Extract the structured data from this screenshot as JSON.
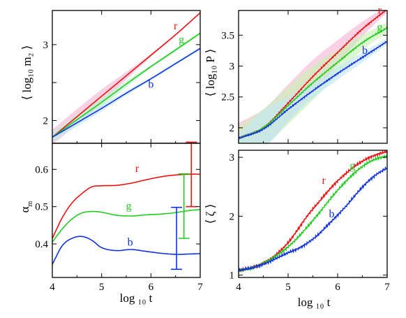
{
  "chart_data": [
    {
      "id": "tl",
      "type": "line",
      "ylabel": "⟨ log₁₀ m₂ ⟩",
      "xlim": [
        4,
        7
      ],
      "ylim": [
        1.7,
        3.45
      ],
      "x_ticks": [
        4,
        5,
        6,
        7
      ],
      "y_ticks": [
        2,
        2.5,
        3
      ],
      "y_tick_labels": [
        "2",
        "",
        "3"
      ],
      "series": [
        {
          "name": "r",
          "color": "#ee1111",
          "x": [
            4,
            4.5,
            5,
            5.5,
            6,
            6.5,
            7
          ],
          "y": [
            1.78,
            2.05,
            2.32,
            2.59,
            2.86,
            3.13,
            3.42
          ],
          "band": [
            0.1,
            0.1,
            0.09,
            0.05,
            0.02,
            0.01,
            0.01
          ],
          "band_color": "#f7b3d2"
        },
        {
          "name": "g",
          "color": "#22cc22",
          "x": [
            4,
            4.5,
            5,
            5.5,
            6,
            6.5,
            7
          ],
          "y": [
            1.78,
            2.01,
            2.24,
            2.48,
            2.71,
            2.93,
            3.15
          ],
          "band": [
            0.06,
            0.07,
            0.06,
            0.04,
            0.02,
            0.02,
            0.02
          ],
          "band_color": "#b7f0c8"
        },
        {
          "name": "b",
          "color": "#1133dd",
          "x": [
            4,
            4.5,
            5,
            5.5,
            6,
            6.5,
            7
          ],
          "y": [
            1.78,
            1.97,
            2.16,
            2.36,
            2.55,
            2.75,
            2.95
          ],
          "band": [
            0.05,
            0.05,
            0.04,
            0.03,
            0.02,
            0.02,
            0.02
          ],
          "band_color": "#bfe6fa"
        }
      ],
      "labels": [
        {
          "text": "r",
          "series": "r",
          "x": 6.5,
          "y": 3.2
        },
        {
          "text": "g",
          "series": "g",
          "x": 6.62,
          "y": 3.02
        },
        {
          "text": "b",
          "series": "b",
          "x": 6.0,
          "y": 2.43
        }
      ]
    },
    {
      "id": "tr",
      "type": "line",
      "ylabel": "⟨ log₁₀ P ⟩",
      "xlim": [
        4,
        7
      ],
      "ylim": [
        1.75,
        3.9
      ],
      "x_ticks": [
        4,
        5,
        6,
        7
      ],
      "y_ticks": [
        2,
        2.5,
        3,
        3.5
      ],
      "y_tick_labels": [
        "2",
        "2.5",
        "3",
        "3.5"
      ],
      "series": [
        {
          "name": "r",
          "color": "#ee1111",
          "x": [
            4,
            4.5,
            5,
            5.5,
            6,
            6.5,
            7
          ],
          "y": [
            1.83,
            2.0,
            2.4,
            2.83,
            3.22,
            3.6,
            3.92
          ],
          "band": [
            0.25,
            0.3,
            0.3,
            0.27,
            0.2,
            0.12,
            0.05
          ],
          "band_color": "#f7b3d2"
        },
        {
          "name": "g",
          "color": "#22cc22",
          "x": [
            4,
            4.5,
            5,
            5.5,
            6,
            6.5,
            7
          ],
          "y": [
            1.83,
            2.0,
            2.36,
            2.73,
            3.06,
            3.38,
            3.62
          ],
          "band": [
            0.2,
            0.3,
            0.3,
            0.28,
            0.2,
            0.12,
            0.08
          ],
          "band_color": "#c5f2b0"
        },
        {
          "name": "b",
          "color": "#1133dd",
          "x": [
            4,
            4.5,
            5,
            5.5,
            6,
            6.5,
            7
          ],
          "y": [
            1.83,
            1.98,
            2.3,
            2.6,
            2.88,
            3.14,
            3.4
          ],
          "band": [
            0.06,
            0.3,
            0.2,
            0.12,
            0.1,
            0.08,
            0.05
          ],
          "band_color": "#bfe6fa"
        }
      ],
      "labels": [
        {
          "text": "r",
          "series": "r",
          "x": 6.85,
          "y": 3.85
        },
        {
          "text": "g",
          "series": "g",
          "x": 6.85,
          "y": 3.58
        },
        {
          "text": "b",
          "series": "b",
          "x": 6.55,
          "y": 3.2
        }
      ]
    },
    {
      "id": "bl",
      "type": "line",
      "xlabel": "log ₁₀ t",
      "ylabel": "α_m",
      "xlim": [
        4,
        7
      ],
      "ylim": [
        0.31,
        0.67
      ],
      "x_ticks": [
        4,
        5,
        6,
        7
      ],
      "y_ticks": [
        0.4,
        0.5,
        0.6
      ],
      "y_tick_labels": [
        "0.4",
        "0.5",
        "0.6"
      ],
      "series": [
        {
          "name": "r",
          "color": "#ee1111",
          "x": [
            4,
            4.2,
            4.4,
            4.6,
            4.8,
            5,
            5.3,
            5.6,
            5.9,
            6.2,
            6.5,
            6.8,
            7
          ],
          "y": [
            0.415,
            0.47,
            0.51,
            0.535,
            0.553,
            0.556,
            0.557,
            0.563,
            0.572,
            0.58,
            0.585,
            0.587,
            0.587
          ]
        },
        {
          "name": "g",
          "color": "#22cc22",
          "x": [
            4,
            4.2,
            4.4,
            4.6,
            4.8,
            5,
            5.3,
            5.6,
            5.9,
            6.2,
            6.5,
            6.8,
            7
          ],
          "y": [
            0.405,
            0.44,
            0.467,
            0.483,
            0.487,
            0.485,
            0.477,
            0.475,
            0.478,
            0.48,
            0.484,
            0.49,
            0.492
          ]
        },
        {
          "name": "b",
          "color": "#1133dd",
          "x": [
            4,
            4.2,
            4.4,
            4.6,
            4.8,
            5,
            5.3,
            5.6,
            5.9,
            6.2,
            6.5,
            6.8,
            7
          ],
          "y": [
            0.345,
            0.395,
            0.415,
            0.42,
            0.41,
            0.39,
            0.382,
            0.385,
            0.38,
            0.375,
            0.372,
            0.373,
            0.374
          ]
        }
      ],
      "errorbars": [
        {
          "series": "r",
          "x": 6.82,
          "y": 0.587,
          "low": 0.5,
          "high": 0.673
        },
        {
          "series": "g",
          "x": 6.67,
          "y": 0.502,
          "low": 0.415,
          "high": 0.588
        },
        {
          "series": "b",
          "x": 6.52,
          "y": 0.415,
          "low": 0.332,
          "high": 0.498
        }
      ],
      "labels": [
        {
          "text": "r",
          "series": "r",
          "x": 5.72,
          "y": 0.593
        },
        {
          "text": "g",
          "series": "g",
          "x": 5.55,
          "y": 0.493
        },
        {
          "text": "b",
          "series": "b",
          "x": 5.58,
          "y": 0.395
        }
      ]
    },
    {
      "id": "br",
      "type": "line",
      "xlabel": "log ₁₀ t",
      "ylabel": "⟨ ζ ⟩",
      "xlim": [
        4,
        7
      ],
      "ylim": [
        0.96,
        3.12
      ],
      "x_ticks": [
        4,
        5,
        6,
        7
      ],
      "y_ticks": [
        1,
        2,
        3
      ],
      "y_tick_labels": [
        "1",
        "2",
        "3"
      ],
      "series": [
        {
          "name": "r",
          "color": "#ee1111",
          "x": [
            4,
            4.3,
            4.6,
            4.8,
            5,
            5.2,
            5.4,
            5.6,
            5.8,
            6,
            6.2,
            6.4,
            6.6,
            6.8,
            7
          ],
          "y": [
            1.08,
            1.13,
            1.25,
            1.38,
            1.55,
            1.78,
            2.02,
            2.22,
            2.42,
            2.6,
            2.75,
            2.88,
            2.98,
            3.05,
            3.1
          ]
        },
        {
          "name": "g",
          "color": "#22cc22",
          "x": [
            4,
            4.3,
            4.6,
            4.8,
            5,
            5.2,
            5.4,
            5.6,
            5.8,
            6,
            6.2,
            6.4,
            6.6,
            6.8,
            7
          ],
          "y": [
            1.08,
            1.13,
            1.24,
            1.35,
            1.48,
            1.64,
            1.83,
            2.03,
            2.24,
            2.44,
            2.62,
            2.78,
            2.9,
            2.98,
            3.02
          ]
        },
        {
          "name": "b",
          "color": "#1133dd",
          "x": [
            4,
            4.3,
            4.6,
            4.8,
            5,
            5.2,
            5.4,
            5.6,
            5.8,
            6,
            6.2,
            6.4,
            6.6,
            6.8,
            7
          ],
          "y": [
            1.08,
            1.13,
            1.22,
            1.3,
            1.38,
            1.45,
            1.55,
            1.68,
            1.85,
            2.02,
            2.2,
            2.4,
            2.58,
            2.72,
            2.82
          ]
        }
      ],
      "labels": [
        {
          "text": "r",
          "series": "r",
          "x": 5.72,
          "y": 2.55
        },
        {
          "text": "g",
          "series": "g",
          "x": 6.3,
          "y": 2.8
        },
        {
          "text": "b",
          "series": "b",
          "x": 5.88,
          "y": 1.98
        }
      ]
    }
  ]
}
